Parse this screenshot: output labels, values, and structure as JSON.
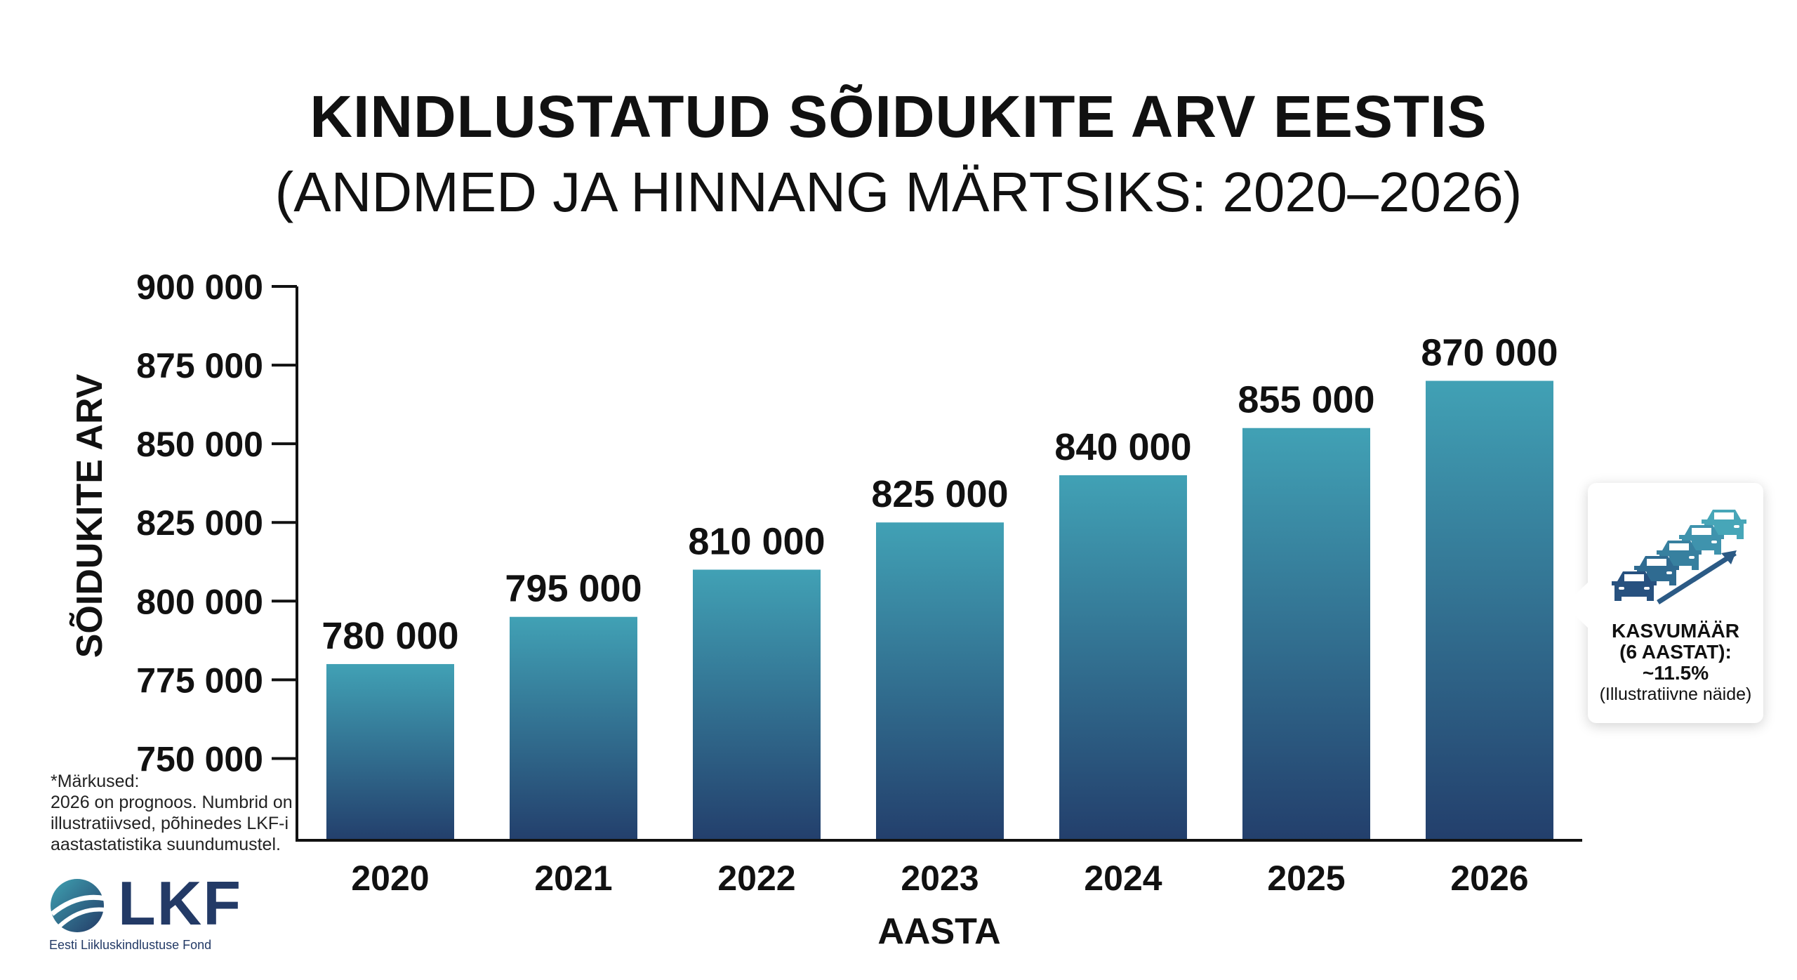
{
  "title": "KINDLUSTATUD SÕIDUKITE ARV EESTIS",
  "subtitle": "(ANDMED JA HINNANG MÄRTSIKS: 2020–2026)",
  "chart_data": {
    "type": "bar",
    "title": "KINDLUSTATUD SÕIDUKITE ARV EESTIS",
    "subtitle": "(ANDMED JA HINNANG MÄRTSIKS: 2020–2026)",
    "categories": [
      "2020",
      "2021",
      "2022",
      "2023",
      "2024",
      "2025",
      "2026"
    ],
    "values": [
      780000,
      795000,
      810000,
      825000,
      840000,
      855000,
      870000
    ],
    "value_labels": [
      "780 000",
      "795 000",
      "810 000",
      "825 000",
      "840 000",
      "855 000",
      "870 000"
    ],
    "xlabel": "AASTA",
    "ylabel": "SÕIDUKITE ARV",
    "ylim": [
      724000,
      900000
    ],
    "yticks": [
      750000,
      775000,
      800000,
      825000,
      850000,
      875000,
      900000
    ],
    "ytick_labels": [
      "750 000",
      "775 000",
      "800 000",
      "825 000",
      "850 000",
      "875 000",
      "900 000"
    ],
    "grid": false,
    "colors": {
      "bar_top": "#41a1b5",
      "bar_bottom": "#233f6c"
    }
  },
  "callout": {
    "line1": "KASVUMÄÄR",
    "line2": "(6 AASTAT):",
    "line3": "~11.5%",
    "line4": "(Illustratiivne näide)"
  },
  "notes": {
    "heading": "*Märkused:",
    "body": "2026 on prognoos. Numbrid on illustratiivsed, põhinedes LKF-i aastastatistika suundumustel."
  },
  "logo": {
    "name": "LKF",
    "subtitle": "Eesti Liikluskindlustuse Fond"
  }
}
